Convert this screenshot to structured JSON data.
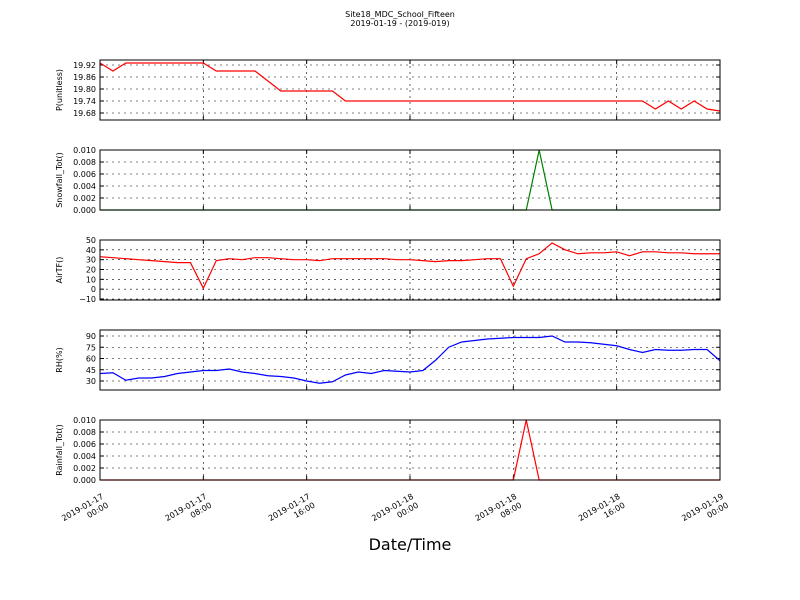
{
  "title": "Site18_MDC_School_Fifteen",
  "subtitle": "2019-01-19 - (2019-019)",
  "xlabel": "Date/Time",
  "chart_data": [
    {
      "type": "line",
      "ylabel": "P(unitless)",
      "color": "#ff0000",
      "x": [
        "2019-01-17 00:00",
        "2019-01-17 01:00",
        "2019-01-17 02:00",
        "2019-01-17 03:00",
        "2019-01-17 04:00",
        "2019-01-17 05:00",
        "2019-01-17 06:00",
        "2019-01-17 07:00",
        "2019-01-17 08:00",
        "2019-01-17 09:00",
        "2019-01-17 10:00",
        "2019-01-17 11:00",
        "2019-01-17 12:00",
        "2019-01-17 13:00",
        "2019-01-17 14:00",
        "2019-01-17 15:00",
        "2019-01-17 16:00",
        "2019-01-17 17:00",
        "2019-01-17 18:00",
        "2019-01-17 19:00",
        "2019-01-17 20:00",
        "2019-01-17 21:00",
        "2019-01-17 22:00",
        "2019-01-17 23:00",
        "2019-01-18 00:00",
        "2019-01-18 01:00",
        "2019-01-18 02:00",
        "2019-01-18 03:00",
        "2019-01-18 04:00",
        "2019-01-18 05:00",
        "2019-01-18 06:00",
        "2019-01-18 07:00",
        "2019-01-18 08:00",
        "2019-01-18 09:00",
        "2019-01-18 10:00",
        "2019-01-18 11:00",
        "2019-01-18 12:00",
        "2019-01-18 13:00",
        "2019-01-18 14:00",
        "2019-01-18 15:00",
        "2019-01-18 16:00",
        "2019-01-18 17:00",
        "2019-01-18 18:00",
        "2019-01-18 19:00",
        "2019-01-18 20:00",
        "2019-01-18 21:00",
        "2019-01-18 22:00",
        "2019-01-18 23:00",
        "2019-01-19 00:00"
      ],
      "values": [
        19.93,
        19.89,
        19.93,
        19.93,
        19.93,
        19.93,
        19.93,
        19.93,
        19.93,
        19.89,
        19.89,
        19.89,
        19.89,
        19.84,
        19.79,
        19.79,
        19.79,
        19.79,
        19.79,
        19.74,
        19.74,
        19.74,
        19.74,
        19.74,
        19.74,
        19.74,
        19.74,
        19.74,
        19.74,
        19.74,
        19.74,
        19.74,
        19.74,
        19.74,
        19.74,
        19.74,
        19.74,
        19.74,
        19.74,
        19.74,
        19.74,
        19.74,
        19.74,
        19.7,
        19.74,
        19.7,
        19.74,
        19.7,
        19.69
      ],
      "xlim": [
        "2019-01-17 00:00",
        "2019-01-19 00:00"
      ],
      "ylim": [
        19.645,
        19.945
      ],
      "yticks": [
        19.68,
        19.74,
        {
          "value": 19.8,
          "label": "19.80"
        },
        19.86,
        19.92
      ],
      "grid": true
    },
    {
      "type": "line",
      "ylabel": "Snowfall_Tot()",
      "color": "#008000",
      "x": [
        "2019-01-17 00:00",
        "2019-01-17 01:00",
        "2019-01-17 02:00",
        "2019-01-17 03:00",
        "2019-01-17 04:00",
        "2019-01-17 05:00",
        "2019-01-17 06:00",
        "2019-01-17 07:00",
        "2019-01-17 08:00",
        "2019-01-17 09:00",
        "2019-01-17 10:00",
        "2019-01-17 11:00",
        "2019-01-17 12:00",
        "2019-01-17 13:00",
        "2019-01-17 14:00",
        "2019-01-17 15:00",
        "2019-01-17 16:00",
        "2019-01-17 17:00",
        "2019-01-17 18:00",
        "2019-01-17 19:00",
        "2019-01-17 20:00",
        "2019-01-17 21:00",
        "2019-01-17 22:00",
        "2019-01-17 23:00",
        "2019-01-18 00:00",
        "2019-01-18 01:00",
        "2019-01-18 02:00",
        "2019-01-18 03:00",
        "2019-01-18 04:00",
        "2019-01-18 05:00",
        "2019-01-18 06:00",
        "2019-01-18 07:00",
        "2019-01-18 08:00",
        "2019-01-18 09:00",
        "2019-01-18 10:00",
        "2019-01-18 11:00",
        "2019-01-18 12:00",
        "2019-01-18 13:00",
        "2019-01-18 14:00",
        "2019-01-18 15:00",
        "2019-01-18 16:00",
        "2019-01-18 17:00",
        "2019-01-18 18:00",
        "2019-01-18 19:00",
        "2019-01-18 20:00",
        "2019-01-18 21:00",
        "2019-01-18 22:00",
        "2019-01-18 23:00",
        "2019-01-19 00:00"
      ],
      "values": [
        0,
        0,
        0,
        0,
        0,
        0,
        0,
        0,
        0,
        0,
        0,
        0,
        0,
        0,
        0,
        0,
        0,
        0,
        0,
        0,
        0,
        0,
        0,
        0,
        0,
        0,
        0,
        0,
        0,
        0,
        0,
        0,
        0,
        0,
        0.01,
        0,
        0,
        0,
        0,
        0,
        0,
        0,
        0,
        0,
        0,
        0,
        0,
        0,
        0
      ],
      "xlim": [
        "2019-01-17 00:00",
        "2019-01-19 00:00"
      ],
      "ylim": [
        0,
        0.01
      ],
      "yticks": [
        {
          "value": 0,
          "label": "0.000"
        },
        {
          "value": 0.002,
          "label": "0.002"
        },
        {
          "value": 0.004,
          "label": "0.004"
        },
        {
          "value": 0.006,
          "label": "0.006"
        },
        {
          "value": 0.008,
          "label": "0.008"
        },
        {
          "value": 0.01,
          "label": "0.010"
        }
      ],
      "grid": true
    },
    {
      "type": "line",
      "ylabel": "AirTF()",
      "color": "#ff0000",
      "x": [
        "2019-01-17 00:00",
        "2019-01-17 01:00",
        "2019-01-17 02:00",
        "2019-01-17 03:00",
        "2019-01-17 04:00",
        "2019-01-17 05:00",
        "2019-01-17 06:00",
        "2019-01-17 07:00",
        "2019-01-17 08:00",
        "2019-01-17 09:00",
        "2019-01-17 10:00",
        "2019-01-17 11:00",
        "2019-01-17 12:00",
        "2019-01-17 13:00",
        "2019-01-17 14:00",
        "2019-01-17 15:00",
        "2019-01-17 16:00",
        "2019-01-17 17:00",
        "2019-01-17 18:00",
        "2019-01-17 19:00",
        "2019-01-17 20:00",
        "2019-01-17 21:00",
        "2019-01-17 22:00",
        "2019-01-17 23:00",
        "2019-01-18 00:00",
        "2019-01-18 01:00",
        "2019-01-18 02:00",
        "2019-01-18 03:00",
        "2019-01-18 04:00",
        "2019-01-18 05:00",
        "2019-01-18 06:00",
        "2019-01-18 07:00",
        "2019-01-18 08:00",
        "2019-01-18 09:00",
        "2019-01-18 10:00",
        "2019-01-18 11:00",
        "2019-01-18 12:00",
        "2019-01-18 13:00",
        "2019-01-18 14:00",
        "2019-01-18 15:00",
        "2019-01-18 16:00",
        "2019-01-18 17:00",
        "2019-01-18 18:00",
        "2019-01-18 19:00",
        "2019-01-18 20:00",
        "2019-01-18 21:00",
        "2019-01-18 22:00",
        "2019-01-18 23:00",
        "2019-01-19 00:00"
      ],
      "values": [
        33,
        32,
        31,
        30,
        29,
        28,
        27,
        27,
        1,
        29,
        31,
        30,
        32,
        32,
        31,
        30,
        30,
        29,
        31,
        31,
        31,
        31,
        31,
        30,
        30,
        29,
        28,
        29,
        29,
        30,
        31,
        31,
        3,
        31,
        36,
        47,
        40,
        36,
        37,
        37,
        38,
        34,
        38,
        38,
        37,
        37,
        36,
        36,
        36
      ],
      "xlim": [
        "2019-01-17 00:00",
        "2019-01-19 00:00"
      ],
      "ylim": [
        -11,
        50
      ],
      "yticks": [
        {
          "value": -10,
          "label": "−10"
        },
        0,
        10,
        20,
        30,
        40,
        50
      ],
      "grid": true
    },
    {
      "type": "line",
      "ylabel": "RH(%)",
      "color": "#0000ff",
      "x": [
        "2019-01-17 00:00",
        "2019-01-17 01:00",
        "2019-01-17 02:00",
        "2019-01-17 03:00",
        "2019-01-17 04:00",
        "2019-01-17 05:00",
        "2019-01-17 06:00",
        "2019-01-17 07:00",
        "2019-01-17 08:00",
        "2019-01-17 09:00",
        "2019-01-17 10:00",
        "2019-01-17 11:00",
        "2019-01-17 12:00",
        "2019-01-17 13:00",
        "2019-01-17 14:00",
        "2019-01-17 15:00",
        "2019-01-17 16:00",
        "2019-01-17 17:00",
        "2019-01-17 18:00",
        "2019-01-17 19:00",
        "2019-01-17 20:00",
        "2019-01-17 21:00",
        "2019-01-17 22:00",
        "2019-01-17 23:00",
        "2019-01-18 00:00",
        "2019-01-18 01:00",
        "2019-01-18 02:00",
        "2019-01-18 03:00",
        "2019-01-18 04:00",
        "2019-01-18 05:00",
        "2019-01-18 06:00",
        "2019-01-18 07:00",
        "2019-01-18 08:00",
        "2019-01-18 09:00",
        "2019-01-18 10:00",
        "2019-01-18 11:00",
        "2019-01-18 12:00",
        "2019-01-18 13:00",
        "2019-01-18 14:00",
        "2019-01-18 15:00",
        "2019-01-18 16:00",
        "2019-01-18 17:00",
        "2019-01-18 18:00",
        "2019-01-18 19:00",
        "2019-01-18 20:00",
        "2019-01-18 21:00",
        "2019-01-18 22:00",
        "2019-01-18 23:00",
        "2019-01-19 00:00"
      ],
      "values": [
        40,
        41,
        31,
        34,
        34,
        36,
        40,
        42,
        44,
        44,
        46,
        42,
        40,
        37,
        36,
        34,
        30,
        27,
        29,
        38,
        42,
        40,
        44,
        43,
        42,
        44,
        58,
        75,
        82,
        84,
        86,
        87,
        88,
        88,
        88,
        90,
        82,
        82,
        81,
        79,
        77,
        72,
        68,
        72,
        71,
        71,
        72,
        72,
        57
      ],
      "xlim": [
        "2019-01-17 00:00",
        "2019-01-19 00:00"
      ],
      "ylim": [
        18,
        98
      ],
      "yticks": [
        30,
        45,
        60,
        75,
        90
      ],
      "grid": true
    },
    {
      "type": "line",
      "ylabel": "Rainfall_Tot()",
      "color": "#ff0000",
      "x": [
        "2019-01-17 00:00",
        "2019-01-17 01:00",
        "2019-01-17 02:00",
        "2019-01-17 03:00",
        "2019-01-17 04:00",
        "2019-01-17 05:00",
        "2019-01-17 06:00",
        "2019-01-17 07:00",
        "2019-01-17 08:00",
        "2019-01-17 09:00",
        "2019-01-17 10:00",
        "2019-01-17 11:00",
        "2019-01-17 12:00",
        "2019-01-17 13:00",
        "2019-01-17 14:00",
        "2019-01-17 15:00",
        "2019-01-17 16:00",
        "2019-01-17 17:00",
        "2019-01-17 18:00",
        "2019-01-17 19:00",
        "2019-01-17 20:00",
        "2019-01-17 21:00",
        "2019-01-17 22:00",
        "2019-01-17 23:00",
        "2019-01-18 00:00",
        "2019-01-18 01:00",
        "2019-01-18 02:00",
        "2019-01-18 03:00",
        "2019-01-18 04:00",
        "2019-01-18 05:00",
        "2019-01-18 06:00",
        "2019-01-18 07:00",
        "2019-01-18 08:00",
        "2019-01-18 09:00",
        "2019-01-18 10:00",
        "2019-01-18 11:00",
        "2019-01-18 12:00",
        "2019-01-18 13:00",
        "2019-01-18 14:00",
        "2019-01-18 15:00",
        "2019-01-18 16:00",
        "2019-01-18 17:00",
        "2019-01-18 18:00",
        "2019-01-18 19:00",
        "2019-01-18 20:00",
        "2019-01-18 21:00",
        "2019-01-18 22:00",
        "2019-01-18 23:00",
        "2019-01-19 00:00"
      ],
      "values": [
        0,
        0,
        0,
        0,
        0,
        0,
        0,
        0,
        0,
        0,
        0,
        0,
        0,
        0,
        0,
        0,
        0,
        0,
        0,
        0,
        0,
        0,
        0,
        0,
        0,
        0,
        0,
        0,
        0,
        0,
        0,
        0,
        0,
        0.01,
        0,
        0,
        0,
        0,
        0,
        0,
        0,
        0,
        0,
        0,
        0,
        0,
        0,
        0,
        0
      ],
      "xlim": [
        "2019-01-17 00:00",
        "2019-01-19 00:00"
      ],
      "ylim": [
        0,
        0.01
      ],
      "yticks": [
        {
          "value": 0,
          "label": "0.000"
        },
        {
          "value": 0.002,
          "label": "0.002"
        },
        {
          "value": 0.004,
          "label": "0.004"
        },
        {
          "value": 0.006,
          "label": "0.006"
        },
        {
          "value": 0.008,
          "label": "0.008"
        },
        {
          "value": 0.01,
          "label": "0.010"
        }
      ],
      "grid": true,
      "xticks": [
        "2019-01-17 00:00",
        "2019-01-17 08:00",
        "2019-01-17 16:00",
        "2019-01-18 00:00",
        "2019-01-18 08:00",
        "2019-01-18 16:00",
        "2019-01-19 00:00"
      ]
    }
  ]
}
